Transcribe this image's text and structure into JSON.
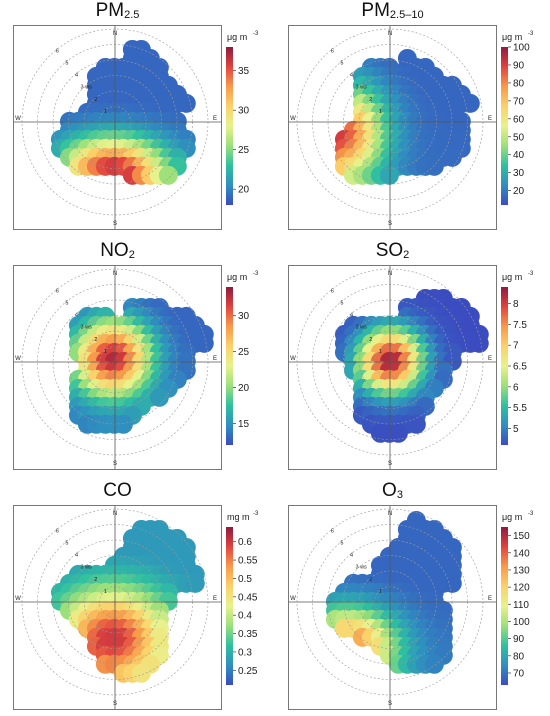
{
  "figure": {
    "layout": "3 rows x 2 columns of polar bivariate plots",
    "compass": [
      "N",
      "E",
      "S",
      "W"
    ],
    "ring_labels": [
      "1",
      "2",
      "3 ws",
      "4",
      "5",
      "6"
    ],
    "colormap": [
      "#3b4cc0",
      "#2f8fbf",
      "#2fc0a0",
      "#9be07a",
      "#e8f28c",
      "#fbd16a",
      "#f79a4a",
      "#e0433f",
      "#8e1b3e"
    ]
  },
  "chart_data": [
    {
      "type": "heatmap",
      "title_main": "PM",
      "title_sub": "2.5",
      "unit": "μg m",
      "unit_exp": "-3",
      "colorbar_ticks": [
        "35",
        "30",
        "25",
        "20"
      ],
      "colorbar_range": [
        18,
        38
      ],
      "hotspot_direction": "south-southwest",
      "radial_axis": "wind speed (ws), rings 1-6"
    },
    {
      "type": "heatmap",
      "title_main": "PM",
      "title_sub": "2.5–10",
      "unit": "μg m",
      "unit_exp": "-3",
      "colorbar_ticks": [
        "100",
        "90",
        "80",
        "70",
        "60",
        "50",
        "40",
        "30",
        "20"
      ],
      "colorbar_range": [
        12,
        100
      ],
      "hotspot_direction": "southwest",
      "radial_axis": "wind speed (ws), rings 1-6"
    },
    {
      "type": "heatmap",
      "title_main": "NO",
      "title_sub": "2",
      "unit": "μg m",
      "unit_exp": "-3",
      "colorbar_ticks": [
        "30",
        "25",
        "20",
        "15"
      ],
      "colorbar_range": [
        12,
        34
      ],
      "hotspot_direction": "center (low wind speed)",
      "radial_axis": "wind speed (ws), rings 1-6"
    },
    {
      "type": "heatmap",
      "title_main": "SO",
      "title_sub": "2",
      "unit": "μg m",
      "unit_exp": "-3",
      "colorbar_ticks": [
        "8",
        "7.5",
        "7",
        "6.5",
        "6",
        "5.5",
        "5"
      ],
      "colorbar_range": [
        4.6,
        8.4
      ],
      "hotspot_direction": "center (low wind speed)",
      "radial_axis": "wind speed (ws), rings 1-6"
    },
    {
      "type": "heatmap",
      "title_main": "CO",
      "title_sub": "",
      "unit": "mg m",
      "unit_exp": "-3",
      "colorbar_ticks": [
        "0.6",
        "0.55",
        "0.5",
        "0.45",
        "0.4",
        "0.35",
        "0.3",
        "0.25"
      ],
      "colorbar_range": [
        0.21,
        0.64
      ],
      "hotspot_direction": "south",
      "radial_axis": "wind speed (ws), rings 1-6"
    },
    {
      "type": "heatmap",
      "title_main": "O",
      "title_sub": "3",
      "unit": "μg m",
      "unit_exp": "-3",
      "colorbar_ticks": [
        "150",
        "140",
        "130",
        "120",
        "110",
        "100",
        "90",
        "80",
        "70"
      ],
      "colorbar_range": [
        63,
        155
      ],
      "hotspot_direction": "southwest",
      "radial_axis": "wind speed (ws), rings 1-6"
    }
  ]
}
